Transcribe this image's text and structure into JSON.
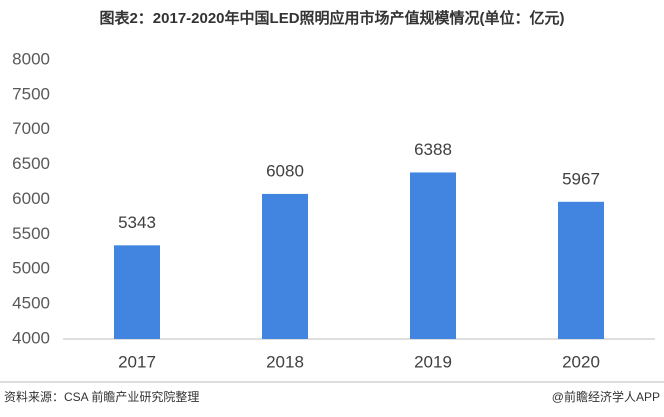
{
  "chart_data": {
    "type": "bar",
    "title": "图表2：2017-2020年中国LED照明应用市场产值规模情况(单位：亿元)",
    "categories": [
      "2017",
      "2018",
      "2019",
      "2020"
    ],
    "values": [
      5343,
      6080,
      6388,
      5967
    ],
    "color": "#4285e0",
    "ylim": [
      4000,
      8000
    ],
    "yticks": [
      4000,
      4500,
      5000,
      5500,
      6000,
      6500,
      7000,
      7500,
      8000
    ],
    "grid": false
  },
  "footer": {
    "source": "资料来源：CSA 前瞻产业研究院整理",
    "credit": "@前瞻经济学人APP"
  }
}
